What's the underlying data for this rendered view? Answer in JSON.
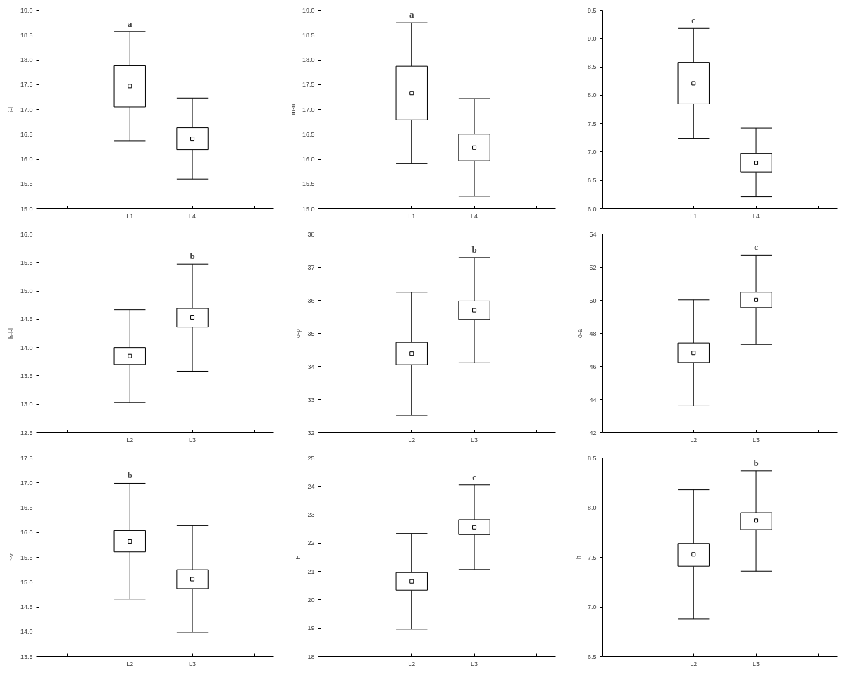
{
  "chart_data": [
    {
      "type": "box",
      "ylabel": "i-l",
      "categories": [
        "L1",
        "L4"
      ],
      "ylim": [
        15,
        19
      ],
      "yticks": [
        {
          "value": 15,
          "label": "15.0"
        },
        15.5,
        {
          "value": 16,
          "label": "16.0"
        },
        16.5,
        {
          "value": 17,
          "label": "17.0"
        },
        17.5,
        {
          "value": 18,
          "label": "18.0"
        },
        18.5,
        {
          "value": 19,
          "label": "19.0"
        }
      ],
      "grid": false,
      "boxes": [
        {
          "low": 16.37,
          "q1": 17.05,
          "median": 17.47,
          "q3": 17.88,
          "high": 18.57
        },
        {
          "low": 15.6,
          "q1": 16.19,
          "median": 16.41,
          "q3": 16.63,
          "high": 17.23
        }
      ],
      "annotations": [
        "a"
      ]
    },
    {
      "type": "box",
      "ylabel": "m-n",
      "categories": [
        "L1",
        "L4"
      ],
      "ylim": [
        15,
        19
      ],
      "yticks": [
        {
          "value": 15,
          "label": "15.0"
        },
        15.5,
        {
          "value": 16,
          "label": "16.0"
        },
        16.5,
        {
          "value": 17,
          "label": "17.0"
        },
        17.5,
        {
          "value": 18,
          "label": "18.0"
        },
        18.5,
        {
          "value": 19,
          "label": "19.0"
        }
      ],
      "grid": false,
      "boxes": [
        {
          "low": 15.91,
          "q1": 16.79,
          "median": 17.33,
          "q3": 17.87,
          "high": 18.75
        },
        {
          "low": 15.25,
          "q1": 15.97,
          "median": 16.23,
          "q3": 16.5,
          "high": 17.22
        }
      ],
      "annotations": [
        "a"
      ]
    },
    {
      "type": "box",
      "categories": [
        "L1",
        "L4"
      ],
      "ylim": [
        6,
        9.5
      ],
      "yticks": [
        {
          "value": 6,
          "label": "6.0"
        },
        6.5,
        {
          "value": 7,
          "label": "7.0"
        },
        7.5,
        {
          "value": 8,
          "label": "8.0"
        },
        8.5,
        {
          "value": 9,
          "label": "9.0"
        },
        9.5
      ],
      "grid": false,
      "boxes": [
        {
          "low": 7.24,
          "q1": 7.85,
          "median": 8.21,
          "q3": 8.58,
          "high": 9.18
        },
        {
          "low": 6.21,
          "q1": 6.65,
          "median": 6.81,
          "q3": 6.97,
          "high": 7.42
        }
      ],
      "annotations": [
        "c"
      ]
    },
    {
      "type": "box",
      "ylabel": "h-l-l",
      "categories": [
        "L2",
        "L3"
      ],
      "ylim": [
        12.5,
        16
      ],
      "yticks": [
        12.5,
        {
          "value": 13,
          "label": "13.0"
        },
        13.5,
        {
          "value": 14,
          "label": "14.0"
        },
        14.5,
        {
          "value": 15,
          "label": "15.0"
        },
        15.5,
        {
          "value": 16,
          "label": "16.0"
        }
      ],
      "grid": false,
      "boxes": [
        {
          "low": 13.03,
          "q1": 13.7,
          "median": 13.85,
          "q3": 14.0,
          "high": 14.67
        },
        {
          "low": 13.58,
          "q1": 14.36,
          "median": 14.53,
          "q3": 14.69,
          "high": 15.47
        }
      ],
      "annotations": [
        "b"
      ]
    },
    {
      "type": "box",
      "ylabel": "o-p",
      "categories": [
        "L2",
        "L3"
      ],
      "ylim": [
        32,
        38
      ],
      "yticks": [
        32,
        33,
        34,
        35,
        36,
        37,
        38
      ],
      "grid": false,
      "boxes": [
        {
          "low": 32.52,
          "q1": 34.05,
          "median": 34.39,
          "q3": 34.73,
          "high": 36.25
        },
        {
          "low": 34.11,
          "q1": 35.42,
          "median": 35.7,
          "q3": 35.98,
          "high": 37.29
        }
      ],
      "annotations": [
        "b"
      ]
    },
    {
      "type": "box",
      "ylabel": "o-a",
      "categories": [
        "L2",
        "L3"
      ],
      "ylim": [
        42,
        54
      ],
      "yticks": [
        42,
        44,
        46,
        48,
        50,
        52,
        54
      ],
      "grid": false,
      "boxes": [
        {
          "low": 43.62,
          "q1": 46.24,
          "median": 46.82,
          "q3": 47.42,
          "high": 50.03
        },
        {
          "low": 47.33,
          "q1": 49.56,
          "median": 50.03,
          "q3": 50.5,
          "high": 52.73
        }
      ],
      "annotations": [
        "c"
      ]
    },
    {
      "type": "box",
      "ylabel": "t-v",
      "categories": [
        "L2",
        "L3"
      ],
      "ylim": [
        13.5,
        17.5
      ],
      "yticks": [
        13.5,
        {
          "value": 14,
          "label": "14.0"
        },
        14.5,
        {
          "value": 15,
          "label": "15.0"
        },
        15.5,
        {
          "value": 16,
          "label": "16.0"
        },
        16.5,
        {
          "value": 17,
          "label": "17.0"
        },
        17.5
      ],
      "grid": false,
      "boxes": [
        {
          "low": 14.66,
          "q1": 15.61,
          "median": 15.82,
          "q3": 16.04,
          "high": 16.99
        },
        {
          "low": 13.99,
          "q1": 14.87,
          "median": 15.06,
          "q3": 15.25,
          "high": 16.14
        }
      ],
      "annotations": [
        "b"
      ]
    },
    {
      "type": "box",
      "ylabel": "H",
      "categories": [
        "L2",
        "L3"
      ],
      "ylim": [
        18,
        25
      ],
      "yticks": [
        18,
        19,
        20,
        21,
        22,
        23,
        24,
        25
      ],
      "grid": false,
      "boxes": [
        {
          "low": 18.96,
          "q1": 20.34,
          "median": 20.65,
          "q3": 20.96,
          "high": 22.34
        },
        {
          "low": 21.07,
          "q1": 22.3,
          "median": 22.56,
          "q3": 22.83,
          "high": 24.05
        }
      ],
      "annotations": [
        "c"
      ]
    },
    {
      "type": "box",
      "ylabel": "h",
      "categories": [
        "L2",
        "L3"
      ],
      "ylim": [
        6.5,
        8.5
      ],
      "yticks": [
        6.5,
        {
          "value": 7,
          "label": "7.0"
        },
        7.5,
        {
          "value": 8,
          "label": "8.0"
        },
        8.5
      ],
      "grid": false,
      "boxes": [
        {
          "low": 6.88,
          "q1": 7.41,
          "median": 7.53,
          "q3": 7.64,
          "high": 8.18
        },
        {
          "low": 7.36,
          "q1": 7.78,
          "median": 7.87,
          "q3": 7.95,
          "high": 8.37
        }
      ],
      "annotations": [
        "b"
      ]
    }
  ]
}
